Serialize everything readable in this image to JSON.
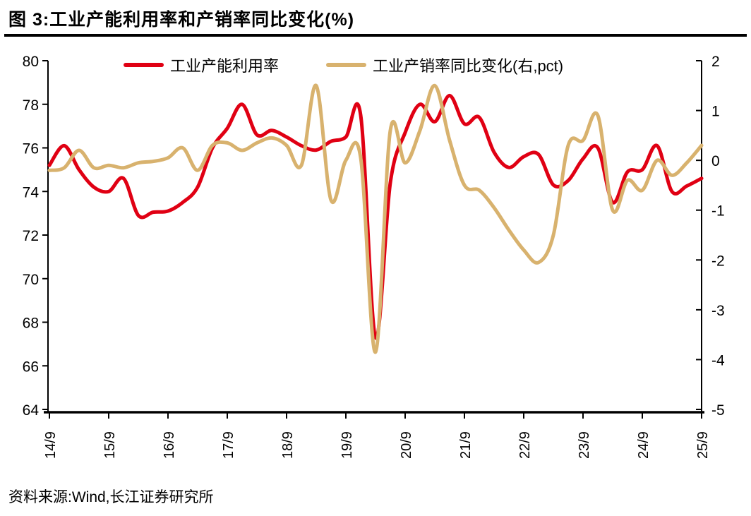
{
  "title": "图 3:工业产能利用率和产销率同比变化(%)",
  "source": "资料来源:Wind,长江证券研究所",
  "chart_data": {
    "type": "line",
    "title": "工业产能利用率和产销率同比变化(%)",
    "x": [
      "14/9",
      "14/12",
      "15/3",
      "15/6",
      "15/9",
      "15/12",
      "16/3",
      "16/6",
      "16/9",
      "16/12",
      "17/3",
      "17/6",
      "17/9",
      "17/12",
      "18/3",
      "18/6",
      "18/9",
      "18/12",
      "19/3",
      "19/6",
      "19/9",
      "19/12",
      "20/3",
      "20/6",
      "20/9",
      "20/12",
      "21/3",
      "21/6",
      "21/9",
      "21/12",
      "22/3",
      "22/6",
      "22/9",
      "22/12",
      "23/3",
      "23/6",
      "23/9",
      "23/12",
      "24/3",
      "24/6",
      "24/9",
      "24/12",
      "25/3",
      "25/6",
      "25/9"
    ],
    "x_tick_labels": [
      "14/9",
      "15/9",
      "16/9",
      "17/9",
      "18/9",
      "19/9",
      "20/9",
      "21/9",
      "22/9",
      "23/9",
      "24/9",
      "25/9"
    ],
    "series": [
      {
        "name": "工业产能利用率",
        "axis": "left",
        "color": "#e00013",
        "values": [
          75.2,
          76.1,
          75.0,
          74.2,
          74.0,
          74.6,
          72.9,
          73.05,
          73.1,
          73.5,
          74.2,
          76.0,
          76.9,
          78.0,
          76.6,
          76.8,
          76.5,
          76.1,
          75.9,
          76.3,
          76.5,
          77.5,
          67.3,
          74.4,
          76.7,
          78.0,
          77.2,
          78.4,
          77.1,
          77.4,
          75.8,
          75.1,
          75.6,
          75.7,
          74.3,
          74.5,
          75.5,
          76.0,
          73.5,
          74.9,
          75.0,
          76.1,
          74.0,
          74.25,
          74.6
        ]
      },
      {
        "name": "工业产销率同比变化(右,pct)",
        "axis": "right",
        "color": "#d8b26e",
        "values": [
          -0.2,
          -0.15,
          0.2,
          -0.15,
          -0.1,
          -0.15,
          -0.05,
          -0.02,
          0.05,
          0.25,
          -0.2,
          0.3,
          0.35,
          0.2,
          0.35,
          0.45,
          0.3,
          -0.1,
          1.5,
          -0.8,
          0.0,
          0.05,
          -3.85,
          0.6,
          -0.05,
          0.6,
          1.5,
          0.4,
          -0.5,
          -0.6,
          -0.95,
          -1.4,
          -1.8,
          -2.05,
          -1.5,
          0.3,
          0.4,
          0.9,
          -1.0,
          -0.4,
          -0.6,
          0.0,
          -0.3,
          -0.05,
          0.3
        ]
      }
    ],
    "left_axis": {
      "min": 64,
      "max": 80,
      "step": 2,
      "ticks": [
        80,
        78,
        76,
        74,
        72,
        70,
        68,
        66,
        64
      ]
    },
    "right_axis": {
      "min": -5,
      "max": 2,
      "step": 1,
      "ticks": [
        2,
        1,
        0,
        -1,
        -2,
        -3,
        -4,
        -5
      ]
    },
    "grid": false,
    "legend_position": "top"
  }
}
